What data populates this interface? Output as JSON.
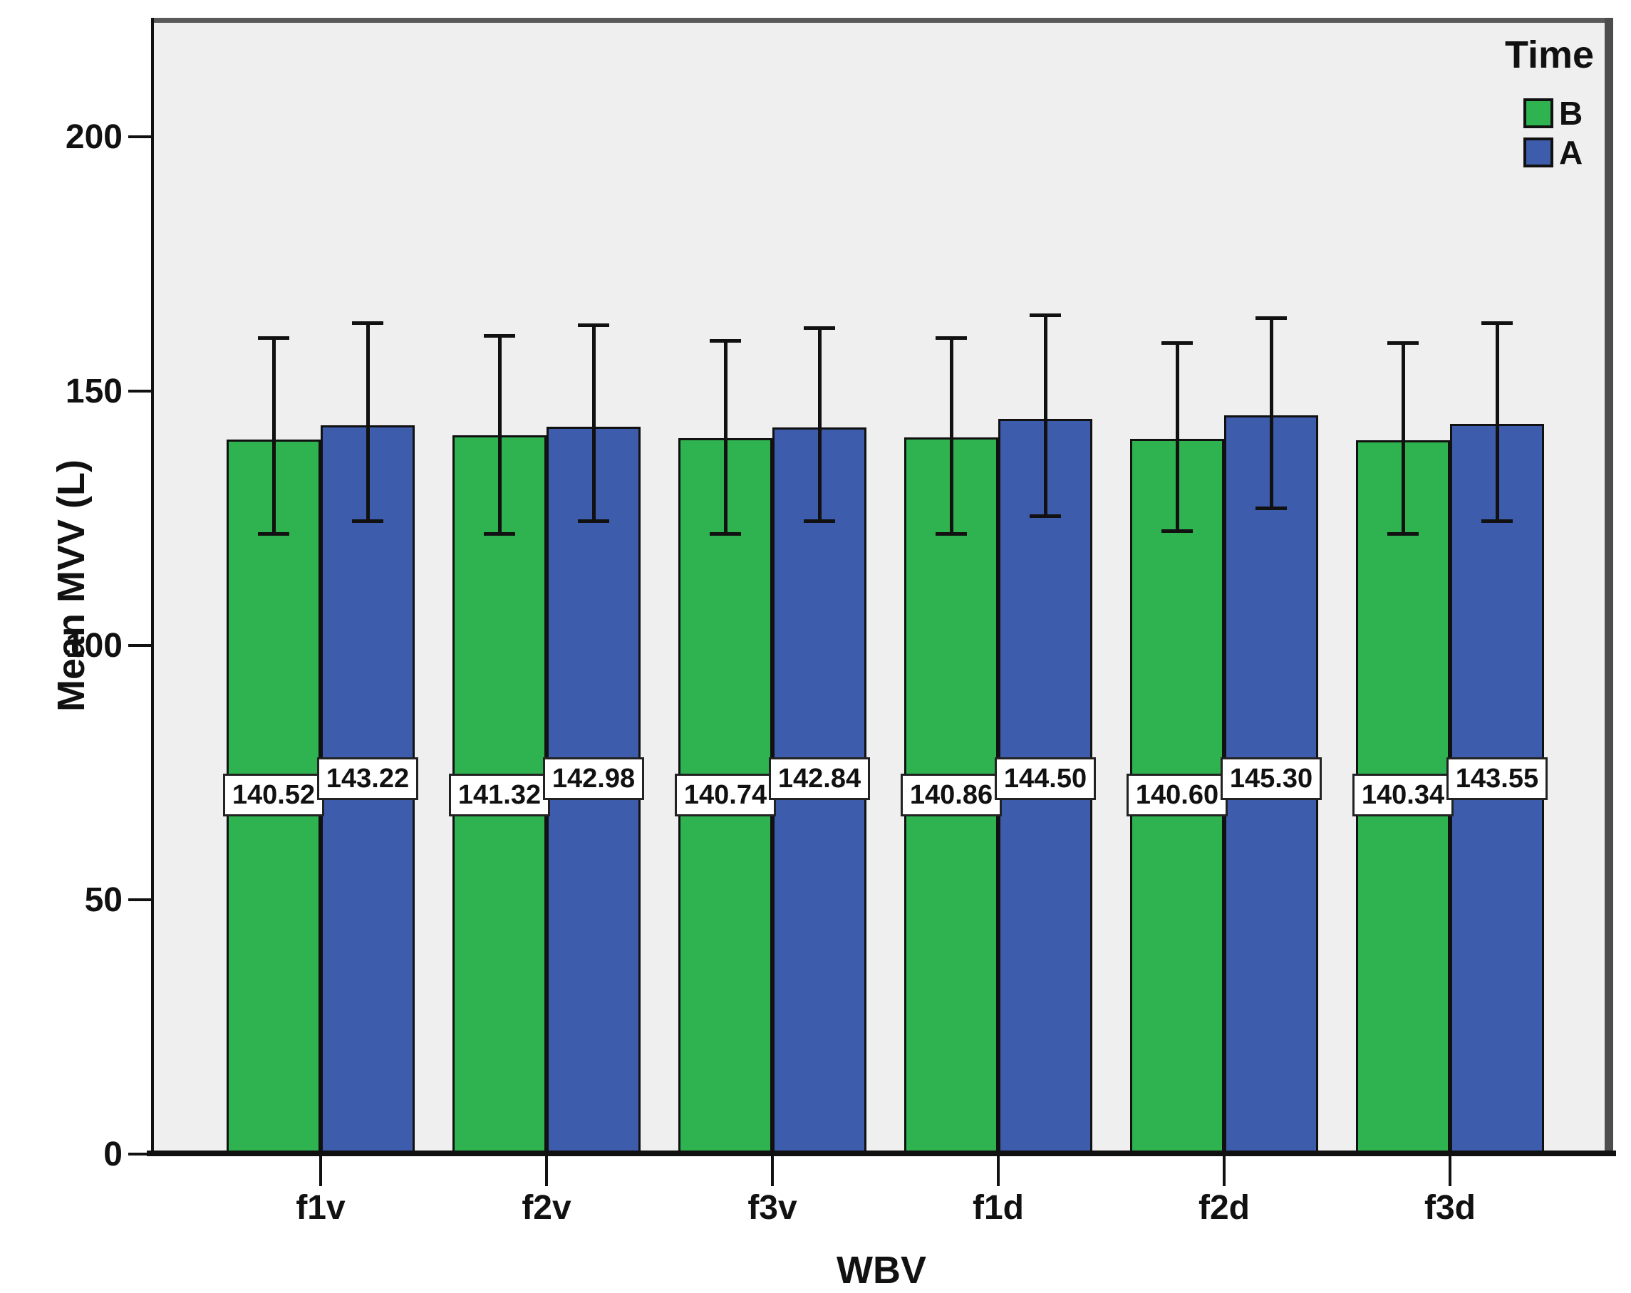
{
  "figure": {
    "background": "#ffffff",
    "plot_background": "#efefef",
    "frame_color": "#5a5a5a",
    "axis_color": "#111111"
  },
  "chart_data": {
    "type": "bar",
    "title": "",
    "xlabel": "WBV",
    "ylabel": "Mean MVV (L)",
    "ylim": [
      0,
      223
    ],
    "yticks": [
      0,
      50,
      100,
      150,
      200
    ],
    "categories": [
      "f1v",
      "f2v",
      "f3v",
      "f1d",
      "f2d",
      "f3d"
    ],
    "grid": false,
    "bar_border_color": "#111111",
    "error_bar_color": "#111111",
    "legend": {
      "title": "Time",
      "position": "top-right",
      "entries": [
        {
          "label": "B",
          "color": "#2fb350"
        },
        {
          "label": "A",
          "color": "#3e5cac"
        }
      ]
    },
    "series": [
      {
        "name": "B",
        "color": "#2fb350",
        "values": [
          140.52,
          141.32,
          140.74,
          140.86,
          140.6,
          140.34
        ],
        "labels": [
          "140.52",
          "141.32",
          "140.74",
          "140.86",
          "140.60",
          "140.34"
        ],
        "error_high": [
          160.5,
          161.0,
          160.0,
          160.5,
          159.5,
          159.5
        ],
        "error_low": [
          122.0,
          122.0,
          122.0,
          122.0,
          122.5,
          122.0
        ]
      },
      {
        "name": "A",
        "color": "#3e5cac",
        "values": [
          143.22,
          142.98,
          142.84,
          144.5,
          145.3,
          143.55
        ],
        "labels": [
          "143.22",
          "142.98",
          "142.84",
          "144.50",
          "145.30",
          "143.55"
        ],
        "error_high": [
          163.5,
          163.0,
          162.5,
          165.0,
          164.5,
          163.5
        ],
        "error_low": [
          124.5,
          124.5,
          124.5,
          125.5,
          127.0,
          124.5
        ]
      }
    ]
  }
}
